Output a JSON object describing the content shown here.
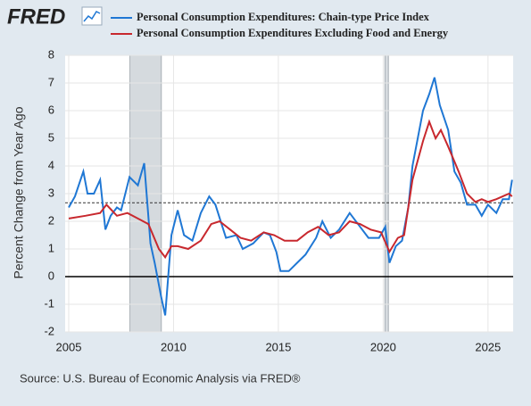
{
  "chart_data": {
    "type": "line",
    "logo": "FRED",
    "ylabel": "Percent Change from Year Ago",
    "source": "Source: U.S. Bureau of Economic Analysis via FRED®",
    "xlim": [
      2004.83,
      2026.2
    ],
    "ylim": [
      -2,
      8
    ],
    "xticks": [
      2005,
      2010,
      2015,
      2020,
      2025
    ],
    "yticks": [
      -2,
      -1,
      0,
      1,
      2,
      3,
      4,
      5,
      6,
      7,
      8
    ],
    "grid": true,
    "reference_line": 2.67,
    "recessions": [
      [
        2007.92,
        2009.42
      ],
      [
        2020.08,
        2020.25
      ]
    ],
    "series": [
      {
        "name": "Personal Consumption Expenditures: Chain-type Price Index",
        "color": "#1f77d4",
        "x": [
          2005.0,
          2005.3,
          2005.7,
          2005.9,
          2006.2,
          2006.5,
          2006.75,
          2007.0,
          2007.3,
          2007.5,
          2007.9,
          2008.3,
          2008.6,
          2008.9,
          2009.1,
          2009.4,
          2009.6,
          2009.9,
          2010.2,
          2010.5,
          2010.9,
          2011.3,
          2011.7,
          2012.0,
          2012.5,
          2013.0,
          2013.3,
          2013.8,
          2014.3,
          2014.6,
          2014.9,
          2015.1,
          2015.5,
          2015.9,
          2016.3,
          2016.8,
          2017.1,
          2017.5,
          2017.9,
          2018.4,
          2018.9,
          2019.3,
          2019.8,
          2020.1,
          2020.3,
          2020.6,
          2020.9,
          2021.2,
          2021.4,
          2021.9,
          2022.2,
          2022.45,
          2022.7,
          2023.1,
          2023.4,
          2023.7,
          2024.0,
          2024.4,
          2024.7,
          2025.0,
          2025.4,
          2025.7,
          2026.0,
          2026.15
        ],
        "values": [
          2.5,
          2.9,
          3.8,
          3.0,
          3.0,
          3.5,
          1.7,
          2.2,
          2.5,
          2.4,
          3.6,
          3.3,
          4.1,
          1.2,
          0.5,
          -0.7,
          -1.4,
          1.5,
          2.4,
          1.5,
          1.3,
          2.3,
          2.9,
          2.6,
          1.4,
          1.5,
          1.0,
          1.2,
          1.6,
          1.5,
          0.9,
          0.2,
          0.2,
          0.5,
          0.8,
          1.4,
          2.0,
          1.4,
          1.7,
          2.3,
          1.8,
          1.4,
          1.4,
          1.8,
          0.5,
          1.1,
          1.3,
          2.5,
          4.0,
          6.0,
          6.6,
          7.2,
          6.2,
          5.3,
          3.8,
          3.4,
          2.6,
          2.6,
          2.2,
          2.6,
          2.3,
          2.8,
          2.8,
          3.5
        ]
      },
      {
        "name": "Personal Consumption Expenditures Excluding Food and Energy",
        "color": "#c8282e",
        "x": [
          2005.0,
          2005.8,
          2006.5,
          2006.8,
          2007.3,
          2007.8,
          2008.3,
          2008.8,
          2009.3,
          2009.6,
          2009.9,
          2010.2,
          2010.7,
          2011.3,
          2011.8,
          2012.2,
          2012.7,
          2013.2,
          2013.7,
          2014.3,
          2014.8,
          2015.3,
          2015.9,
          2016.4,
          2016.9,
          2017.4,
          2017.9,
          2018.4,
          2018.9,
          2019.4,
          2019.9,
          2020.3,
          2020.7,
          2021.0,
          2021.4,
          2021.9,
          2022.2,
          2022.5,
          2022.75,
          2023.1,
          2023.6,
          2024.0,
          2024.4,
          2024.7,
          2025.0,
          2025.4,
          2025.7,
          2026.0,
          2026.15
        ],
        "values": [
          2.1,
          2.2,
          2.3,
          2.6,
          2.2,
          2.3,
          2.1,
          1.9,
          1.0,
          0.7,
          1.1,
          1.1,
          1.0,
          1.3,
          1.9,
          2.0,
          1.7,
          1.4,
          1.3,
          1.6,
          1.5,
          1.3,
          1.3,
          1.6,
          1.8,
          1.5,
          1.6,
          2.0,
          1.9,
          1.7,
          1.6,
          0.9,
          1.4,
          1.5,
          3.5,
          4.9,
          5.6,
          5.0,
          5.3,
          4.7,
          3.8,
          3.0,
          2.7,
          2.8,
          2.7,
          2.8,
          2.9,
          3.0,
          2.9
        ]
      }
    ]
  }
}
